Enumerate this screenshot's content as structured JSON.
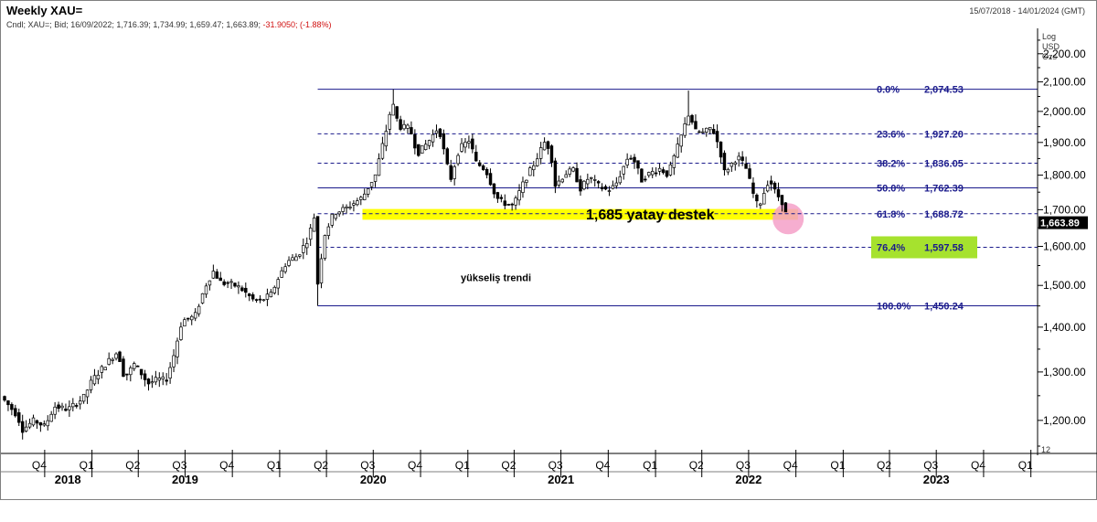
{
  "header": {
    "title": "Weekly XAU=",
    "date_range": "15/07/2018 - 14/01/2024 (GMT)",
    "info_prefix": "Cndl; XAU=; Bid; 16/09/2022; 1,716.39; 1,734.99; 1,659.47; 1,663.89;",
    "info_change": "-31.9050; (-1.88%)",
    "scale_log": "Log",
    "scale_currency": "USD",
    "scale_unit": "Ozs",
    "axis_corner": "12"
  },
  "chart_data": {
    "type": "candlestick",
    "title": "Weekly XAU=",
    "y_scale": "log",
    "ylim": [
      1150,
      2260
    ],
    "xlim": [
      "2018-07-15",
      "2024-01-14"
    ],
    "y_ticks": [
      1200,
      1300,
      1400,
      1500,
      1600,
      1700,
      1800,
      1900,
      2000,
      2100,
      2200
    ],
    "y_tick_labels": [
      "1,200.00",
      "1,300.00",
      "1,400.00",
      "1,500.00",
      "1,600.00",
      "1,700.00",
      "1,800.00",
      "1,900.00",
      "2,000.00",
      "2,100.00",
      "2,200.00"
    ],
    "last_price": 1663.89,
    "last_price_label": "1,663.89",
    "quarter_ticks": [
      {
        "label": "Q4",
        "date": "2018-10-01"
      },
      {
        "label": "Q1",
        "date": "2019-01-01"
      },
      {
        "label": "Q2",
        "date": "2019-04-01"
      },
      {
        "label": "Q3",
        "date": "2019-07-01"
      },
      {
        "label": "Q4",
        "date": "2019-10-01"
      },
      {
        "label": "Q1",
        "date": "2020-01-01"
      },
      {
        "label": "Q2",
        "date": "2020-04-01"
      },
      {
        "label": "Q3",
        "date": "2020-07-01"
      },
      {
        "label": "Q4",
        "date": "2020-10-01"
      },
      {
        "label": "Q1",
        "date": "2021-01-01"
      },
      {
        "label": "Q2",
        "date": "2021-04-01"
      },
      {
        "label": "Q3",
        "date": "2021-07-01"
      },
      {
        "label": "Q4",
        "date": "2021-10-01"
      },
      {
        "label": "Q1",
        "date": "2022-01-01"
      },
      {
        "label": "Q2",
        "date": "2022-04-01"
      },
      {
        "label": "Q3",
        "date": "2022-07-01"
      },
      {
        "label": "Q4",
        "date": "2022-10-01"
      },
      {
        "label": "Q1",
        "date": "2023-01-01"
      },
      {
        "label": "Q2",
        "date": "2023-04-01"
      },
      {
        "label": "Q3",
        "date": "2023-07-01"
      },
      {
        "label": "Q4",
        "date": "2023-10-01"
      },
      {
        "label": "Q1",
        "date": "2024-01-01"
      }
    ],
    "year_labels": [
      {
        "label": "2018",
        "date": "2018-11-15"
      },
      {
        "label": "2019",
        "date": "2019-07-01"
      },
      {
        "label": "2020",
        "date": "2020-07-01"
      },
      {
        "label": "2021",
        "date": "2021-07-01"
      },
      {
        "label": "2022",
        "date": "2022-07-01"
      },
      {
        "label": "2023",
        "date": "2023-07-01"
      }
    ],
    "fibonacci": {
      "start_date": "2020-03-15",
      "levels": [
        {
          "pct": "0.0%",
          "value": 2074.53,
          "label": "2,074.53",
          "style": "solid"
        },
        {
          "pct": "23.6%",
          "value": 1927.2,
          "label": "1,927.20",
          "style": "dashed"
        },
        {
          "pct": "38.2%",
          "value": 1836.05,
          "label": "1,836.05",
          "style": "dashed"
        },
        {
          "pct": "50.0%",
          "value": 1762.39,
          "label": "1,762.39",
          "style": "solid"
        },
        {
          "pct": "61.8%",
          "value": 1688.72,
          "label": "1,688.72",
          "style": "dashed"
        },
        {
          "pct": "76.4%",
          "value": 1597.58,
          "label": "1,597.58",
          "style": "dashed",
          "highlight": "#a6e22e"
        },
        {
          "pct": "100.0%",
          "value": 1450.24,
          "label": "1,450.24",
          "style": "solid"
        }
      ]
    },
    "support_band": {
      "label": "1,685 yatay destek",
      "from_date": "2020-06-10",
      "to_date": "2022-10-05",
      "low": 1672,
      "high": 1702,
      "color": "#ffff00"
    },
    "trend_label": "yükseliş trendi",
    "marker": {
      "date": "2022-09-16",
      "value": 1685,
      "color": "#f4a0c8"
    },
    "price_path": [
      [
        "2018-07-15",
        1240
      ],
      [
        "2018-08-10",
        1208
      ],
      [
        "2018-08-17",
        1180
      ],
      [
        "2018-09-10",
        1200
      ],
      [
        "2018-10-01",
        1188
      ],
      [
        "2018-10-20",
        1228
      ],
      [
        "2018-11-15",
        1222
      ],
      [
        "2018-12-15",
        1245
      ],
      [
        "2019-01-01",
        1282
      ],
      [
        "2019-01-30",
        1320
      ],
      [
        "2019-02-20",
        1345
      ],
      [
        "2019-03-05",
        1287
      ],
      [
        "2019-03-25",
        1318
      ],
      [
        "2019-04-20",
        1275
      ],
      [
        "2019-05-10",
        1285
      ],
      [
        "2019-05-25",
        1282
      ],
      [
        "2019-06-10",
        1340
      ],
      [
        "2019-06-25",
        1415
      ],
      [
        "2019-07-20",
        1425
      ],
      [
        "2019-08-10",
        1500
      ],
      [
        "2019-08-25",
        1535
      ],
      [
        "2019-09-10",
        1505
      ],
      [
        "2019-09-25",
        1505
      ],
      [
        "2019-10-15",
        1495
      ],
      [
        "2019-11-10",
        1465
      ],
      [
        "2019-11-25",
        1462
      ],
      [
        "2019-12-15",
        1478
      ],
      [
        "2019-12-30",
        1520
      ],
      [
        "2020-01-15",
        1560
      ],
      [
        "2020-02-05",
        1575
      ],
      [
        "2020-02-25",
        1620
      ],
      [
        "2020-03-08",
        1680
      ],
      [
        "2020-03-16",
        1480
      ],
      [
        "2020-03-25",
        1620
      ],
      [
        "2020-04-15",
        1690
      ],
      [
        "2020-05-10",
        1705
      ],
      [
        "2020-06-10",
        1735
      ],
      [
        "2020-07-05",
        1800
      ],
      [
        "2020-07-25",
        1930
      ],
      [
        "2020-08-07",
        2030
      ],
      [
        "2020-08-20",
        1950
      ],
      [
        "2020-09-10",
        1945
      ],
      [
        "2020-09-25",
        1865
      ],
      [
        "2020-10-15",
        1900
      ],
      [
        "2020-11-05",
        1950
      ],
      [
        "2020-11-15",
        1875
      ],
      [
        "2020-11-28",
        1785
      ],
      [
        "2020-12-15",
        1880
      ],
      [
        "2021-01-05",
        1910
      ],
      [
        "2021-01-15",
        1840
      ],
      [
        "2021-02-05",
        1815
      ],
      [
        "2021-02-25",
        1735
      ],
      [
        "2021-03-10",
        1720
      ],
      [
        "2021-03-30",
        1710
      ],
      [
        "2021-04-20",
        1780
      ],
      [
        "2021-05-10",
        1835
      ],
      [
        "2021-05-30",
        1900
      ],
      [
        "2021-06-10",
        1880
      ],
      [
        "2021-06-20",
        1770
      ],
      [
        "2021-07-10",
        1805
      ],
      [
        "2021-07-25",
        1815
      ],
      [
        "2021-08-08",
        1760
      ],
      [
        "2021-08-25",
        1795
      ],
      [
        "2021-09-15",
        1765
      ],
      [
        "2021-09-30",
        1755
      ],
      [
        "2021-10-15",
        1770
      ],
      [
        "2021-11-10",
        1860
      ],
      [
        "2021-11-20",
        1845
      ],
      [
        "2021-12-05",
        1785
      ],
      [
        "2021-12-20",
        1805
      ],
      [
        "2022-01-10",
        1820
      ],
      [
        "2022-01-25",
        1800
      ],
      [
        "2022-02-15",
        1895
      ],
      [
        "2022-03-07",
        1995
      ],
      [
        "2022-03-20",
        1935
      ],
      [
        "2022-04-05",
        1930
      ],
      [
        "2022-04-20",
        1950
      ],
      [
        "2022-05-05",
        1885
      ],
      [
        "2022-05-15",
        1810
      ],
      [
        "2022-06-10",
        1855
      ],
      [
        "2022-06-25",
        1825
      ],
      [
        "2022-07-10",
        1745
      ],
      [
        "2022-07-20",
        1705
      ],
      [
        "2022-08-10",
        1790
      ],
      [
        "2022-08-20",
        1755
      ],
      [
        "2022-09-05",
        1720
      ],
      [
        "2022-09-16",
        1664
      ]
    ],
    "key_wicks": [
      {
        "date": "2020-03-16",
        "high": 1625,
        "low": 1450.24
      },
      {
        "date": "2020-08-07",
        "high": 2074.53,
        "low": 2010
      },
      {
        "date": "2022-03-07",
        "high": 2070.0,
        "low": 1960
      },
      {
        "date": "2022-09-16",
        "high": 1734.99,
        "low": 1659.47
      }
    ]
  }
}
